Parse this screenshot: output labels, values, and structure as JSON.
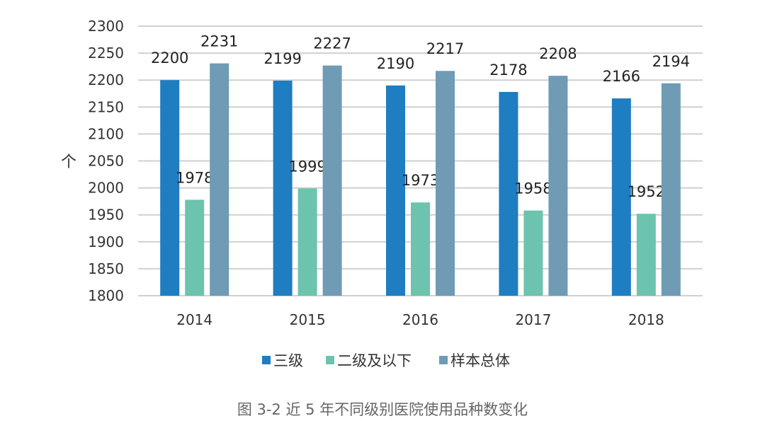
{
  "chart_data": {
    "type": "bar",
    "title": "",
    "caption": "图 3-2 近 5 年不同级别医院使用品种数变化",
    "xlabel": "",
    "ylabel": "个",
    "ylim": [
      1800,
      2300
    ],
    "yticks": [
      1800,
      1850,
      1900,
      1950,
      2000,
      2050,
      2100,
      2150,
      2200,
      2250,
      2300
    ],
    "grid": true,
    "legend_position": "bottom",
    "categories": [
      "2014",
      "2015",
      "2016",
      "2017",
      "2018"
    ],
    "series": [
      {
        "name": "三级",
        "color": "#1f7dc1",
        "values": [
          2200,
          2199,
          2190,
          2178,
          2166
        ]
      },
      {
        "name": "二级及以下",
        "color": "#6cc3ae",
        "values": [
          1978,
          1999,
          1973,
          1958,
          1952
        ]
      },
      {
        "name": "样本总体",
        "color": "#6f9bb5",
        "values": [
          2231,
          2227,
          2217,
          2208,
          2194
        ]
      }
    ]
  }
}
